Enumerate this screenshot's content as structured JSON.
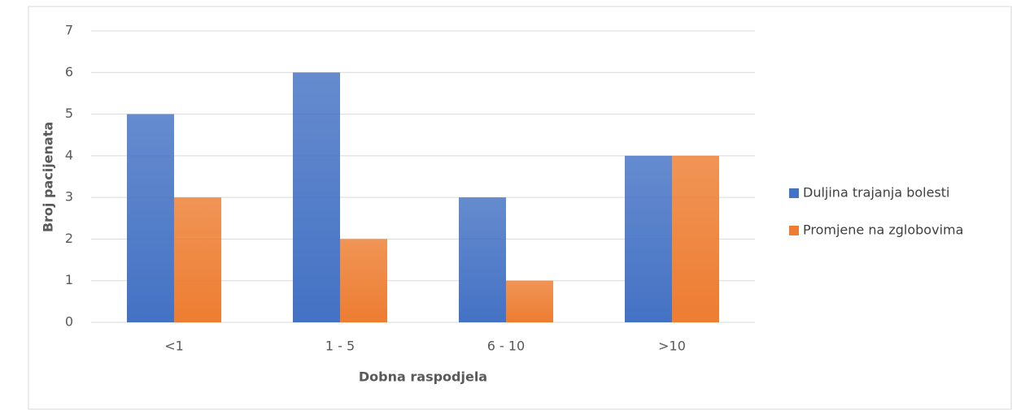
{
  "chart_data": {
    "type": "bar",
    "x_label": "Dobna raspodjela",
    "y_label": "Broj pacijenata",
    "categories": [
      "<1",
      "1 - 5",
      "6 - 10",
      ">10"
    ],
    "series": [
      {
        "name": "Duljina trajanja bolesti",
        "color": "#4472c4",
        "values": [
          5,
          6,
          3,
          4
        ]
      },
      {
        "name": "Promjene na zglobovima",
        "color": "#ed7d31",
        "values": [
          3,
          2,
          1,
          4
        ]
      }
    ],
    "ylim": [
      0,
      7
    ],
    "yticks": [
      0,
      1,
      2,
      3,
      4,
      5,
      6,
      7
    ],
    "grid": true,
    "legend": "right"
  }
}
